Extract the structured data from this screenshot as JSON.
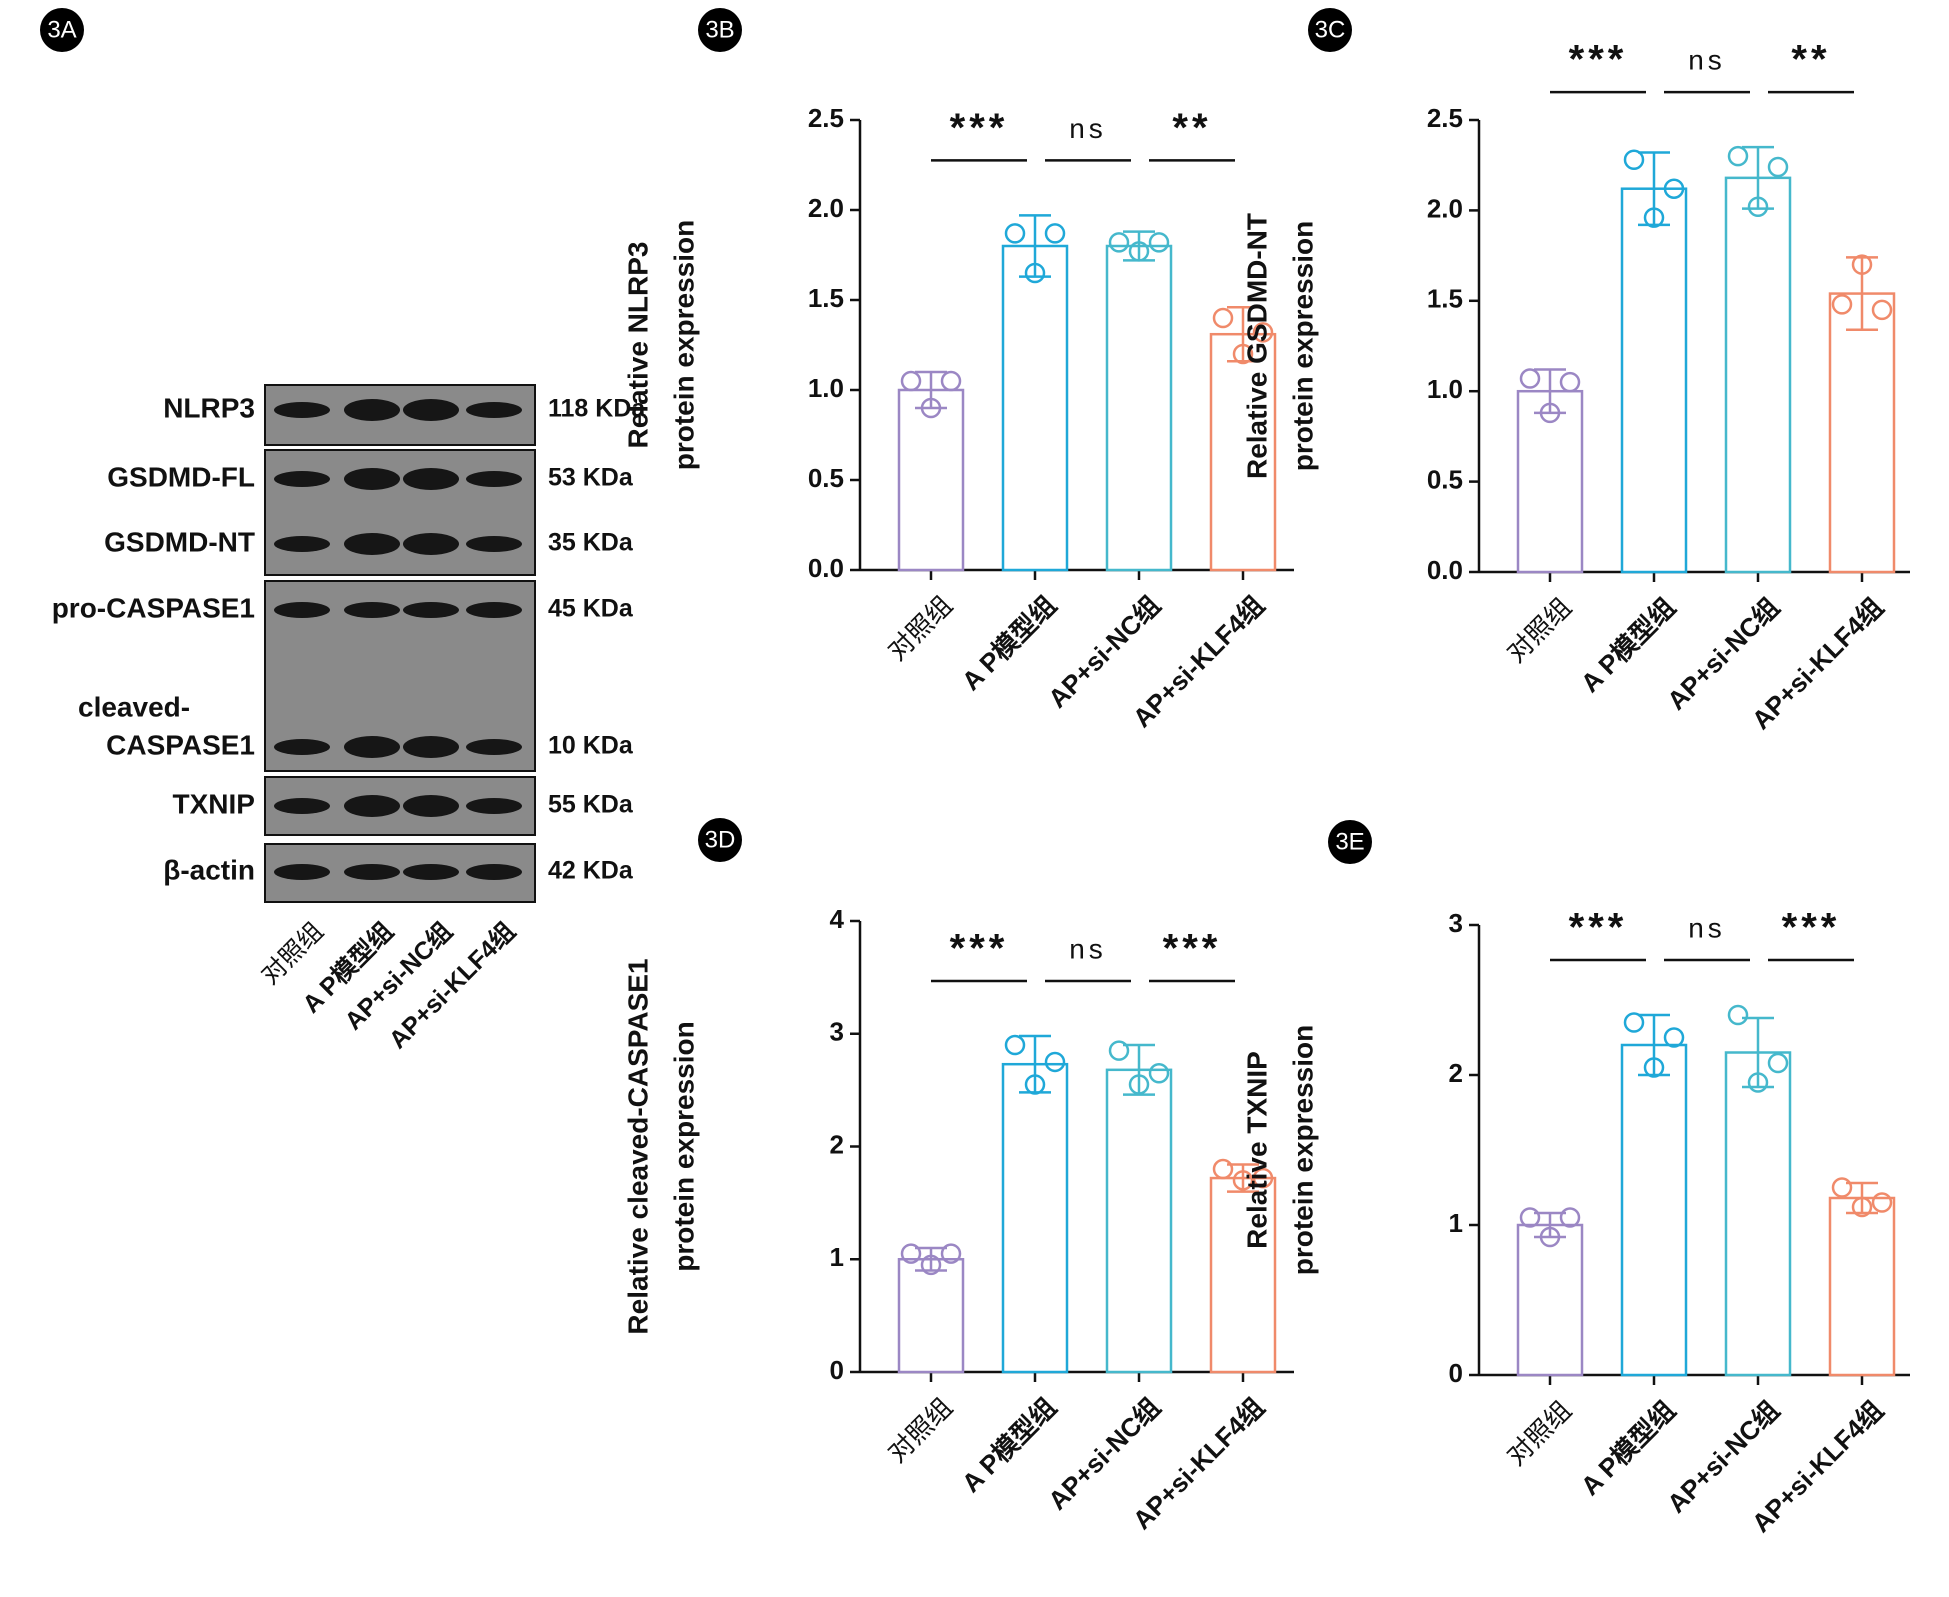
{
  "blot": {
    "panel": "3A",
    "rows": [
      {
        "protein": [
          "NLRP3"
        ],
        "size": "118 KDa"
      },
      {
        "protein": [
          "GSDMD-FL"
        ],
        "size": "53 KDa"
      },
      {
        "protein": [
          "GSDMD-NT"
        ],
        "size": "35 KDa"
      },
      {
        "protein": [
          "pro-CASPASE1"
        ],
        "size": "45 KDa"
      },
      {
        "protein": [
          "cleaved-",
          "CASPASE1"
        ],
        "size": "10 KDa"
      },
      {
        "protein": [
          "TXNIP"
        ],
        "size": "55 KDa"
      },
      {
        "protein": [
          "β-actin"
        ],
        "size": "42 KDa"
      }
    ],
    "lanes": [
      "对照组",
      "A P模型组",
      "AP+si-NC组",
      "AP+si-KLF4组"
    ]
  },
  "chart_data": [
    {
      "type": "bar",
      "panel": "3B",
      "ylabel": [
        "Relative NLRP3",
        "protein expression"
      ],
      "categories": [
        "对照组",
        "A P模型组",
        "AP+si-NC组",
        "AP+si-KLF4组"
      ],
      "colors": [
        "#9b87c4",
        "#1fa8d8",
        "#45b8cc",
        "#f08a6a"
      ],
      "values": [
        1.0,
        1.8,
        1.8,
        1.31
      ],
      "errors": [
        0.1,
        0.17,
        0.08,
        0.15
      ],
      "points": [
        [
          1.05,
          0.9,
          1.05
        ],
        [
          1.87,
          1.65,
          1.87
        ],
        [
          1.82,
          1.77,
          1.82
        ],
        [
          1.4,
          1.2,
          1.32
        ]
      ],
      "ylim": [
        0,
        2.5
      ],
      "yticks": [
        {
          "value": 0,
          "label": "0.0"
        },
        0.5,
        {
          "value": 1,
          "label": "1.0"
        },
        1.5,
        {
          "value": 2,
          "label": "2.0"
        },
        2.5
      ],
      "significance": [
        "***",
        "ns",
        "**"
      ]
    },
    {
      "type": "bar",
      "panel": "3C",
      "ylabel": [
        "Relative GSDMD-NT",
        "protein expression"
      ],
      "categories": [
        "对照组",
        "A P模型组",
        "AP+si-NC组",
        "AP+si-KLF4组"
      ],
      "colors": [
        "#9b87c4",
        "#1fa8d8",
        "#45b8cc",
        "#f08a6a"
      ],
      "values": [
        1.0,
        2.12,
        2.18,
        1.54
      ],
      "errors": [
        0.12,
        0.2,
        0.17,
        0.2
      ],
      "points": [
        [
          1.07,
          0.88,
          1.05
        ],
        [
          2.28,
          1.96,
          2.12
        ],
        [
          2.3,
          2.02,
          2.24
        ],
        [
          1.48,
          1.7,
          1.45
        ]
      ],
      "ylim": [
        0,
        2.5
      ],
      "yticks": [
        {
          "value": 0,
          "label": "0.0"
        },
        0.5,
        {
          "value": 1,
          "label": "1.0"
        },
        1.5,
        {
          "value": 2,
          "label": "2.0"
        },
        2.5
      ],
      "significance": [
        "***",
        "ns",
        "**"
      ]
    },
    {
      "type": "bar",
      "panel": "3D",
      "ylabel": [
        "Relative cleaved-CASPASE1",
        "protein expression"
      ],
      "categories": [
        "对照组",
        "A P模型组",
        "AP+si-NC组",
        "AP+si-KLF4组"
      ],
      "colors": [
        "#9b87c4",
        "#1fa8d8",
        "#45b8cc",
        "#f08a6a"
      ],
      "values": [
        1.0,
        2.73,
        2.68,
        1.72
      ],
      "errors": [
        0.1,
        0.25,
        0.22,
        0.12
      ],
      "points": [
        [
          1.05,
          0.95,
          1.05
        ],
        [
          2.9,
          2.55,
          2.75
        ],
        [
          2.85,
          2.55,
          2.65
        ],
        [
          1.8,
          1.7,
          1.72
        ]
      ],
      "ylim": [
        0,
        4
      ],
      "yticks": [
        0,
        1,
        2,
        3,
        4
      ],
      "significance": [
        "***",
        "ns",
        "***"
      ]
    },
    {
      "type": "bar",
      "panel": "3E",
      "ylabel": [
        "Relative TXNIP",
        "protein expression"
      ],
      "categories": [
        "对照组",
        "A P模型组",
        "AP+si-NC组",
        "AP+si-KLF4组"
      ],
      "colors": [
        "#9b87c4",
        "#1fa8d8",
        "#45b8cc",
        "#f08a6a"
      ],
      "values": [
        1.0,
        2.2,
        2.15,
        1.18
      ],
      "errors": [
        0.08,
        0.2,
        0.23,
        0.1
      ],
      "points": [
        [
          1.05,
          0.92,
          1.05
        ],
        [
          2.35,
          2.05,
          2.25
        ],
        [
          2.4,
          1.95,
          2.08
        ],
        [
          1.25,
          1.12,
          1.15
        ]
      ],
      "ylim": [
        0,
        3
      ],
      "yticks": [
        0,
        1,
        2,
        3
      ],
      "significance": [
        "***",
        "ns",
        "***"
      ]
    }
  ]
}
